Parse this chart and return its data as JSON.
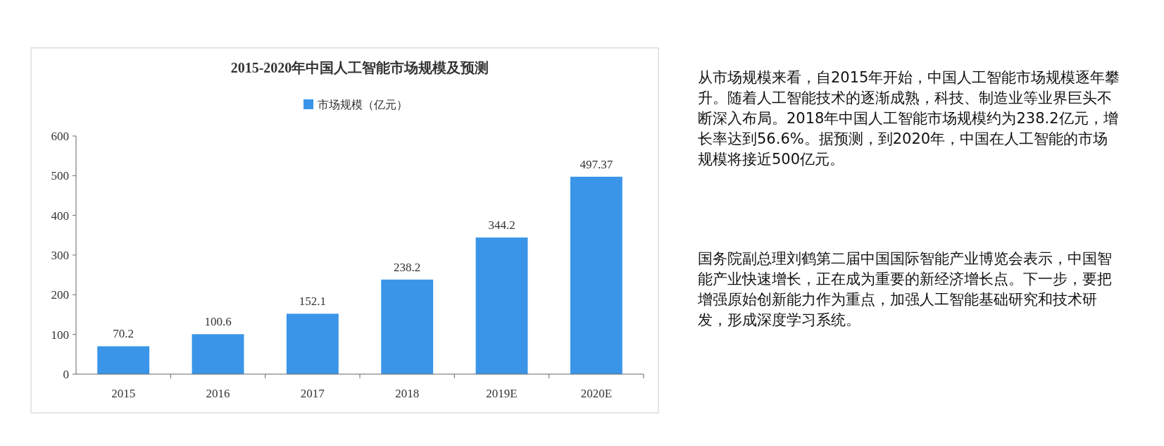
{
  "chart_data": {
    "type": "bar",
    "title": "2015-2020年中国人工智能市场规模及预测",
    "categories": [
      "2015",
      "2016",
      "2017",
      "2018",
      "2019E",
      "2020E"
    ],
    "series": [
      {
        "name": "市场规模（亿元）",
        "color": "#3a95e8",
        "values": [
          70.2,
          100.6,
          152.1,
          238.2,
          344.2,
          497.37
        ]
      }
    ],
    "ylim": [
      0,
      600
    ],
    "yticks": [
      0,
      100,
      200,
      300,
      400,
      500,
      600
    ],
    "grid": false,
    "legend": "top",
    "data_labels": true,
    "annotations": [
      "从市场规模来看，自2015年开始，中国人工智能市场规模逐年攀升。随着人工智能技术的逐渐成熟，科技、制造业等业界巨头不断深入布局。2018年中国人工智能市场规模约为238.2亿元，增长率达到56.6%。据预测，到2020年，中国在人工智能的市场规模将接近500亿元。",
      "国务院副总理刘鹤第二届中国国际智能产业博览会表示，中国智能产业快速增长，正在成为重要的新经济增长点。下一步，要把增强原始创新能力作为重点，加强人工智能基础研究和技术研发，形成深度学习系统。"
    ]
  }
}
